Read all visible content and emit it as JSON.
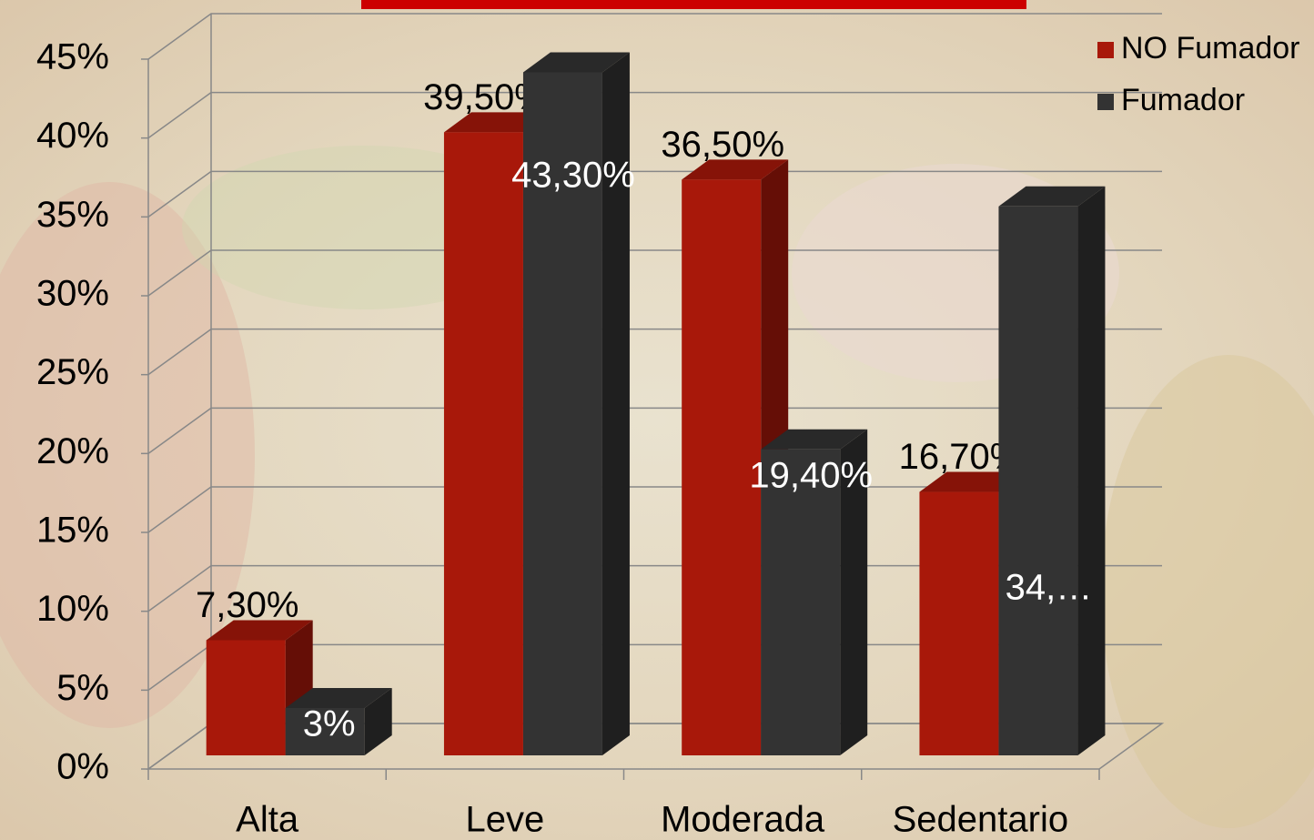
{
  "chart_data": {
    "type": "bar3d",
    "categories": [
      "Alta",
      "Leve",
      "Moderada",
      "Sedentario"
    ],
    "series": [
      {
        "name": "NO Fumador",
        "color": "#a8180a",
        "values": [
          7.3,
          39.5,
          36.5,
          16.7
        ],
        "value_labels": [
          "7,30%",
          "39,50%",
          "36,50%",
          "16,70%"
        ]
      },
      {
        "name": "Fumador",
        "color": "#333333",
        "values": [
          3,
          43.3,
          19.4,
          34.8
        ],
        "value_labels": [
          "3%",
          "43,30%",
          "19,40%",
          "34,…"
        ]
      }
    ],
    "ylim": [
      0,
      45
    ],
    "yticks": [
      {
        "value": 0,
        "label": "0%"
      },
      {
        "value": 5,
        "label": "5%"
      },
      {
        "value": 10,
        "label": "10%"
      },
      {
        "value": 15,
        "label": "15%"
      },
      {
        "value": 20,
        "label": "20%"
      },
      {
        "value": 25,
        "label": "25%"
      },
      {
        "value": 30,
        "label": "30%"
      },
      {
        "value": 35,
        "label": "35%"
      },
      {
        "value": 40,
        "label": "40%"
      },
      {
        "value": 45,
        "label": "45%"
      }
    ],
    "grid": true,
    "legend": "top-right"
  }
}
